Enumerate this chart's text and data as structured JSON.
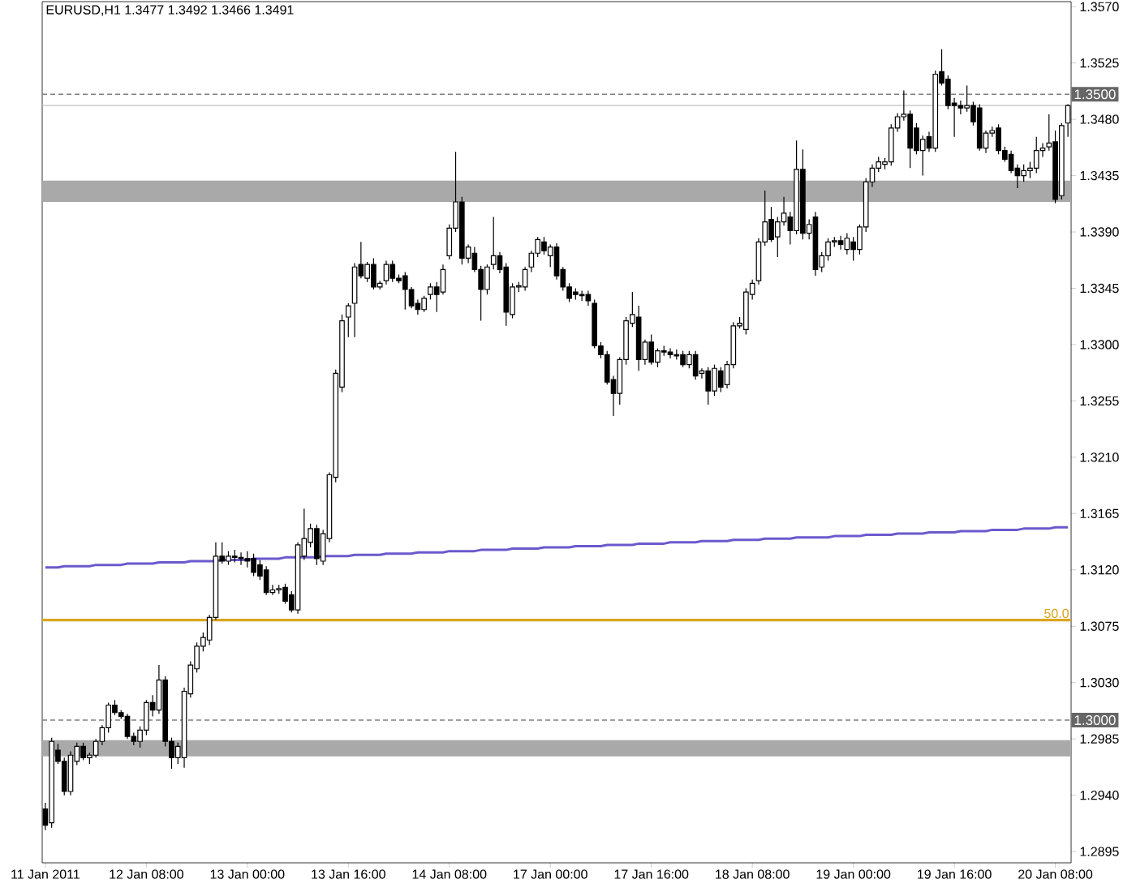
{
  "chart_data": {
    "type": "candlestick",
    "title": "EURUSD,H1 1.3477 1.3492 1.3466 1.3491",
    "categories": [
      "11 Jan 2011",
      null,
      null,
      null,
      null,
      null,
      null,
      null,
      null,
      null,
      null,
      null,
      null,
      null,
      null,
      null,
      "12 Jan 08:00",
      null,
      null,
      null,
      null,
      null,
      null,
      null,
      null,
      null,
      null,
      null,
      null,
      null,
      null,
      null,
      "13 Jan 00:00",
      null,
      null,
      null,
      null,
      null,
      null,
      null,
      null,
      null,
      null,
      null,
      null,
      null,
      null,
      null,
      "13 Jan 16:00",
      null,
      null,
      null,
      null,
      null,
      null,
      null,
      null,
      null,
      null,
      null,
      null,
      null,
      null,
      null,
      "14 Jan 08:00",
      null,
      null,
      null,
      null,
      null,
      null,
      null,
      null,
      null,
      null,
      null,
      null,
      null,
      null,
      null,
      "17 Jan 00:00",
      null,
      null,
      null,
      null,
      null,
      null,
      null,
      null,
      null,
      null,
      null,
      null,
      null,
      null,
      null,
      "17 Jan 16:00",
      null,
      null,
      null,
      null,
      null,
      null,
      null,
      null,
      null,
      null,
      null,
      null,
      null,
      null,
      null,
      "18 Jan 08:00",
      null,
      null,
      null,
      null,
      null,
      null,
      null,
      null,
      null,
      null,
      null,
      null,
      null,
      null,
      null,
      "19 Jan 00:00",
      null,
      null,
      null,
      null,
      null,
      null,
      null,
      null,
      null,
      null,
      null,
      null,
      null,
      null,
      null,
      "19 Jan 16:00",
      null,
      null,
      null,
      null,
      null,
      null,
      null,
      null,
      null,
      null,
      null,
      null,
      null,
      null,
      null,
      "20 Jan 08:00",
      null,
      null
    ],
    "ohlc": [
      [
        1.2929,
        1.2934,
        1.2912,
        1.2916
      ],
      [
        1.2918,
        1.2986,
        1.2914,
        1.2983
      ],
      [
        1.2976,
        1.2981,
        1.2965,
        1.2967
      ],
      [
        1.2967,
        1.297,
        1.294,
        1.2943
      ],
      [
        1.2943,
        1.2975,
        1.294,
        1.2972
      ],
      [
        1.2967,
        1.2982,
        1.2964,
        1.2979
      ],
      [
        1.2979,
        1.2982,
        1.2968,
        1.297
      ],
      [
        1.297,
        1.2974,
        1.2965,
        1.2972
      ],
      [
        1.2972,
        1.2985,
        1.297,
        1.2983
      ],
      [
        1.2983,
        1.2996,
        1.298,
        1.2994
      ],
      [
        1.2994,
        1.3014,
        1.299,
        1.3012
      ],
      [
        1.3012,
        1.3016,
        1.3004,
        1.3006
      ],
      [
        1.3006,
        1.3008,
        1.3001,
        1.3003
      ],
      [
        1.3003,
        1.3005,
        1.2985,
        1.2987
      ],
      [
        1.2987,
        1.299,
        1.298,
        1.2983
      ],
      [
        1.2983,
        1.2995,
        1.2978,
        1.2992
      ],
      [
        1.2992,
        1.3016,
        1.2988,
        1.3014
      ],
      [
        1.3014,
        1.302,
        1.3003,
        1.3008
      ],
      [
        1.3008,
        1.3044,
        1.3005,
        1.3032
      ],
      [
        1.3032,
        1.3035,
        1.2979,
        1.2983
      ],
      [
        1.2983,
        1.2986,
        1.2961,
        1.297
      ],
      [
        1.297,
        1.2982,
        1.2965,
        1.2979
      ],
      [
        1.297,
        1.3026,
        1.2962,
        1.3023
      ],
      [
        1.3021,
        1.3047,
        1.3018,
        1.3044
      ],
      [
        1.3041,
        1.3062,
        1.3038,
        1.3059
      ],
      [
        1.3059,
        1.307,
        1.3055,
        1.3066
      ],
      [
        1.3064,
        1.3084,
        1.306,
        1.3082
      ],
      [
        1.3082,
        1.3142,
        1.308,
        1.3131
      ],
      [
        1.3131,
        1.3142,
        1.3125,
        1.3127
      ],
      [
        1.3127,
        1.3135,
        1.3124,
        1.3131
      ],
      [
        1.3131,
        1.3136,
        1.3126,
        1.313
      ],
      [
        1.313,
        1.3134,
        1.3124,
        1.3129
      ],
      [
        1.3129,
        1.3135,
        1.3122,
        1.3127
      ],
      [
        1.3129,
        1.3133,
        1.3115,
        1.3118
      ],
      [
        1.3124,
        1.3128,
        1.3112,
        1.3115
      ],
      [
        1.312,
        1.3123,
        1.31,
        1.3102
      ],
      [
        1.3102,
        1.3108,
        1.31,
        1.3104
      ],
      [
        1.3104,
        1.3108,
        1.3101,
        1.3105
      ],
      [
        1.3106,
        1.3109,
        1.3093,
        1.3095
      ],
      [
        1.31,
        1.3103,
        1.3086,
        1.3088
      ],
      [
        1.3088,
        1.3142,
        1.3085,
        1.314
      ],
      [
        1.3131,
        1.3169,
        1.3128,
        1.3145
      ],
      [
        1.3142,
        1.3157,
        1.3138,
        1.3153
      ],
      [
        1.3153,
        1.3156,
        1.3124,
        1.3129
      ],
      [
        1.3127,
        1.3152,
        1.3124,
        1.3149
      ],
      [
        1.3145,
        1.3198,
        1.3142,
        1.3196
      ],
      [
        1.3194,
        1.328,
        1.319,
        1.3277
      ],
      [
        1.3266,
        1.3324,
        1.3262,
        1.3319
      ],
      [
        1.3322,
        1.3333,
        1.3306,
        1.3331
      ],
      [
        1.3333,
        1.3365,
        1.3306,
        1.3362
      ],
      [
        1.3364,
        1.3382,
        1.3353,
        1.3355
      ],
      [
        1.3353,
        1.3366,
        1.335,
        1.3364
      ],
      [
        1.3364,
        1.3369,
        1.3344,
        1.3346
      ],
      [
        1.3346,
        1.3351,
        1.3344,
        1.3349
      ],
      [
        1.3351,
        1.3367,
        1.3348,
        1.3364
      ],
      [
        1.3364,
        1.3367,
        1.335,
        1.3353
      ],
      [
        1.3353,
        1.3356,
        1.3349,
        1.3351
      ],
      [
        1.3355,
        1.3358,
        1.3328,
        1.3344
      ],
      [
        1.3344,
        1.3346,
        1.3329,
        1.3331
      ],
      [
        1.3333,
        1.3336,
        1.3324,
        1.3328
      ],
      [
        1.3328,
        1.3339,
        1.3326,
        1.3337
      ],
      [
        1.334,
        1.3349,
        1.3336,
        1.3346
      ],
      [
        1.3346,
        1.335,
        1.3326,
        1.334
      ],
      [
        1.3342,
        1.3364,
        1.334,
        1.336
      ],
      [
        1.3371,
        1.3396,
        1.3368,
        1.3393
      ],
      [
        1.3393,
        1.3454,
        1.339,
        1.3414
      ],
      [
        1.3414,
        1.3418,
        1.3364,
        1.3369
      ],
      [
        1.3369,
        1.338,
        1.3365,
        1.3378
      ],
      [
        1.3373,
        1.3378,
        1.3358,
        1.336
      ],
      [
        1.336,
        1.3363,
        1.3319,
        1.3344
      ],
      [
        1.3344,
        1.3364,
        1.334,
        1.3362
      ],
      [
        1.3364,
        1.3402,
        1.336,
        1.3371
      ],
      [
        1.3371,
        1.3374,
        1.3357,
        1.336
      ],
      [
        1.3362,
        1.3365,
        1.3315,
        1.3326
      ],
      [
        1.3324,
        1.3349,
        1.3321,
        1.3346
      ],
      [
        1.3346,
        1.335,
        1.3342,
        1.3347
      ],
      [
        1.3346,
        1.3362,
        1.3343,
        1.336
      ],
      [
        1.3362,
        1.3375,
        1.3358,
        1.3373
      ],
      [
        1.3373,
        1.3386,
        1.337,
        1.3384
      ],
      [
        1.3382,
        1.3386,
        1.3372,
        1.3375
      ],
      [
        1.3371,
        1.338,
        1.3362,
        1.3378
      ],
      [
        1.3378,
        1.3381,
        1.3352,
        1.3355
      ],
      [
        1.336,
        1.3362,
        1.3343,
        1.3346
      ],
      [
        1.3346,
        1.3349,
        1.3334,
        1.3337
      ],
      [
        1.3342,
        1.3345,
        1.3336,
        1.334
      ],
      [
        1.334,
        1.3343,
        1.3335,
        1.3339
      ],
      [
        1.334,
        1.3343,
        1.3331,
        1.3335
      ],
      [
        1.3333,
        1.3336,
        1.3297,
        1.3299
      ],
      [
        1.3299,
        1.3302,
        1.3289,
        1.3292
      ],
      [
        1.3292,
        1.3295,
        1.3268,
        1.327
      ],
      [
        1.3272,
        1.3275,
        1.3243,
        1.3261
      ],
      [
        1.3261,
        1.329,
        1.3252,
        1.3288
      ],
      [
        1.3288,
        1.3322,
        1.3284,
        1.3319
      ],
      [
        1.3317,
        1.3342,
        1.3314,
        1.3324
      ],
      [
        1.3322,
        1.3331,
        1.3279,
        1.3288
      ],
      [
        1.3288,
        1.3304,
        1.3284,
        1.3302
      ],
      [
        1.3302,
        1.3308,
        1.3284,
        1.3286
      ],
      [
        1.3286,
        1.3297,
        1.3282,
        1.3295
      ],
      [
        1.3295,
        1.3299,
        1.3291,
        1.3294
      ],
      [
        1.3294,
        1.3297,
        1.3289,
        1.3292
      ],
      [
        1.3292,
        1.3296,
        1.3288,
        1.3291
      ],
      [
        1.3292,
        1.3295,
        1.3282,
        1.3284
      ],
      [
        1.3284,
        1.3295,
        1.3281,
        1.3292
      ],
      [
        1.3292,
        1.3295,
        1.3272,
        1.3275
      ],
      [
        1.3277,
        1.3281,
        1.3273,
        1.3279
      ],
      [
        1.3279,
        1.3282,
        1.3252,
        1.3263
      ],
      [
        1.3263,
        1.3284,
        1.3259,
        1.3281
      ],
      [
        1.3279,
        1.3282,
        1.3262,
        1.3266
      ],
      [
        1.3268,
        1.3287,
        1.3265,
        1.3284
      ],
      [
        1.3284,
        1.3318,
        1.3281,
        1.3315
      ],
      [
        1.3315,
        1.3322,
        1.3313,
        1.3317
      ],
      [
        1.3312,
        1.3345,
        1.3308,
        1.3342
      ],
      [
        1.334,
        1.3352,
        1.3336,
        1.3349
      ],
      [
        1.3351,
        1.3385,
        1.3348,
        1.3382
      ],
      [
        1.3382,
        1.3423,
        1.3379,
        1.3398
      ],
      [
        1.34,
        1.341,
        1.3382,
        1.3384
      ],
      [
        1.3386,
        1.3402,
        1.337,
        1.3398
      ],
      [
        1.3398,
        1.3418,
        1.3395,
        1.3405
      ],
      [
        1.3402,
        1.3406,
        1.338,
        1.3391
      ],
      [
        1.3391,
        1.3463,
        1.3388,
        1.344
      ],
      [
        1.344,
        1.3456,
        1.3384,
        1.3389
      ],
      [
        1.3389,
        1.34,
        1.3384,
        1.3396
      ],
      [
        1.3402,
        1.3406,
        1.3355,
        1.336
      ],
      [
        1.3362,
        1.3374,
        1.3358,
        1.3371
      ],
      [
        1.3371,
        1.3385,
        1.3367,
        1.3382
      ],
      [
        1.3382,
        1.3386,
        1.3378,
        1.3383
      ],
      [
        1.3383,
        1.3387,
        1.3376,
        1.338
      ],
      [
        1.3376,
        1.3389,
        1.3372,
        1.3385
      ],
      [
        1.3382,
        1.3386,
        1.3367,
        1.3376
      ],
      [
        1.3376,
        1.3396,
        1.3372,
        1.3394
      ],
      [
        1.3394,
        1.3433,
        1.339,
        1.343
      ],
      [
        1.343,
        1.3444,
        1.3426,
        1.3441
      ],
      [
        1.3441,
        1.345,
        1.3438,
        1.3446
      ],
      [
        1.3444,
        1.3449,
        1.344,
        1.3446
      ],
      [
        1.3446,
        1.3476,
        1.3443,
        1.3473
      ],
      [
        1.3473,
        1.3485,
        1.347,
        1.3482
      ],
      [
        1.3482,
        1.3503,
        1.3479,
        1.3484
      ],
      [
        1.3484,
        1.3487,
        1.3441,
        1.3457
      ],
      [
        1.3473,
        1.3477,
        1.3452,
        1.3455
      ],
      [
        1.3455,
        1.3467,
        1.3435,
        1.3464
      ],
      [
        1.3466,
        1.347,
        1.3454,
        1.3457
      ],
      [
        1.3457,
        1.3519,
        1.3454,
        1.3516
      ],
      [
        1.3518,
        1.3536,
        1.3507,
        1.3509
      ],
      [
        1.3512,
        1.3515,
        1.3488,
        1.3491
      ],
      [
        1.3493,
        1.3497,
        1.3466,
        1.3491
      ],
      [
        1.3491,
        1.3495,
        1.3484,
        1.3489
      ],
      [
        1.3489,
        1.3507,
        1.3486,
        1.3491
      ],
      [
        1.3491,
        1.3494,
        1.3475,
        1.3478
      ],
      [
        1.3489,
        1.3492,
        1.3455,
        1.3457
      ],
      [
        1.3457,
        1.3471,
        1.3453,
        1.3469
      ],
      [
        1.3469,
        1.3474,
        1.3466,
        1.3471
      ],
      [
        1.3473,
        1.3476,
        1.3452,
        1.3455
      ],
      [
        1.3455,
        1.3458,
        1.3446,
        1.3448
      ],
      [
        1.3452,
        1.3455,
        1.3437,
        1.3439
      ],
      [
        1.3441,
        1.3444,
        1.3425,
        1.3435
      ],
      [
        1.3435,
        1.3444,
        1.343,
        1.3439
      ],
      [
        1.3439,
        1.3446,
        1.3433,
        1.3441
      ],
      [
        1.3441,
        1.3466,
        1.3437,
        1.3455
      ],
      [
        1.3455,
        1.3461,
        1.345,
        1.3457
      ],
      [
        1.3458,
        1.3484,
        1.3455,
        1.3461
      ],
      [
        1.3462,
        1.3471,
        1.3413,
        1.3416
      ],
      [
        1.3419,
        1.3477,
        1.3416,
        1.3475
      ],
      [
        1.3477,
        1.3492,
        1.3466,
        1.3491
      ]
    ],
    "series": [
      {
        "type": "line",
        "color": "#6a5acd",
        "values": [
          1.3122,
          1.3122,
          1.3122,
          1.3123,
          1.3123,
          1.3123,
          1.3123,
          1.3123,
          1.3124,
          1.3124,
          1.3124,
          1.3124,
          1.3124,
          1.3125,
          1.3125,
          1.3125,
          1.3125,
          1.3125,
          1.3126,
          1.3126,
          1.3126,
          1.3126,
          1.3126,
          1.3127,
          1.3127,
          1.3127,
          1.3127,
          1.3127,
          1.3128,
          1.3128,
          1.3128,
          1.3128,
          1.3128,
          1.3129,
          1.3129,
          1.3129,
          1.3129,
          1.3129,
          1.313,
          1.313,
          1.313,
          1.313,
          1.313,
          1.313,
          1.3131,
          1.3131,
          1.3131,
          1.3131,
          1.3131,
          1.3132,
          1.3132,
          1.3132,
          1.3132,
          1.3132,
          1.3133,
          1.3133,
          1.3133,
          1.3133,
          1.3133,
          1.3134,
          1.3134,
          1.3134,
          1.3134,
          1.3134,
          1.3135,
          1.3135,
          1.3135,
          1.3135,
          1.3135,
          1.3136,
          1.3136,
          1.3136,
          1.3136,
          1.3136,
          1.3137,
          1.3137,
          1.3137,
          1.3137,
          1.3137,
          1.3138,
          1.3138,
          1.3138,
          1.3138,
          1.3138,
          1.3139,
          1.3139,
          1.3139,
          1.3139,
          1.3139,
          1.314,
          1.314,
          1.314,
          1.314,
          1.314,
          1.3141,
          1.3141,
          1.3141,
          1.3141,
          1.3141,
          1.3142,
          1.3142,
          1.3142,
          1.3142,
          1.3142,
          1.3143,
          1.3143,
          1.3143,
          1.3143,
          1.3143,
          1.3144,
          1.3144,
          1.3144,
          1.3144,
          1.3144,
          1.3145,
          1.3145,
          1.3145,
          1.3145,
          1.3145,
          1.3146,
          1.3146,
          1.3146,
          1.3146,
          1.3146,
          1.3146,
          1.3147,
          1.3147,
          1.3147,
          1.3147,
          1.3147,
          1.3148,
          1.3148,
          1.3148,
          1.3148,
          1.3148,
          1.3149,
          1.3149,
          1.3149,
          1.3149,
          1.3149,
          1.315,
          1.315,
          1.315,
          1.315,
          1.315,
          1.3151,
          1.3151,
          1.3151,
          1.3151,
          1.3151,
          1.3152,
          1.3152,
          1.3152,
          1.3152,
          1.3152,
          1.3153,
          1.3153,
          1.3153,
          1.3153,
          1.3153,
          1.3154,
          1.3154,
          1.3154
        ]
      }
    ],
    "ylim": [
      1.2886,
      1.3574
    ],
    "yticks": [
      1.2895,
      {
        "value": 1.294,
        "label": "1.2940"
      },
      1.2985,
      {
        "value": 1.303,
        "label": "1.3030"
      },
      1.3075,
      {
        "value": 1.312,
        "label": "1.3120"
      },
      1.3165,
      {
        "value": 1.321,
        "label": "1.3210"
      },
      1.3255,
      {
        "value": 1.33,
        "label": "1.3300"
      },
      1.3345,
      {
        "value": 1.339,
        "label": "1.3390"
      },
      1.3435,
      {
        "value": 1.348,
        "label": "1.3480"
      },
      1.3525,
      {
        "value": 1.357,
        "label": "1.3570"
      }
    ],
    "bands": [
      {
        "axis": "y",
        "from": 1.3414,
        "to": 1.3431,
        "color": "#a9a9a9"
      },
      {
        "axis": "y",
        "from": 1.2971,
        "to": 1.2984,
        "color": "#a9a9a9"
      }
    ],
    "ref_lines": [
      {
        "axis": "y",
        "value": 1.35,
        "label": "1.3500",
        "color": "#808080",
        "line_style": "dashed"
      },
      {
        "axis": "y",
        "value": 1.3,
        "label": "1.3000",
        "color": "#808080",
        "line_style": "dashed"
      },
      {
        "axis": "y",
        "value": 1.3491,
        "color": "#c0c0c0",
        "line_style": "solid"
      },
      {
        "axis": "y",
        "value": 1.308,
        "color": "#daa520",
        "line_style": "solid"
      }
    ],
    "annotations": [
      {
        "text": "50.0",
        "y": 1.308
      }
    ]
  }
}
